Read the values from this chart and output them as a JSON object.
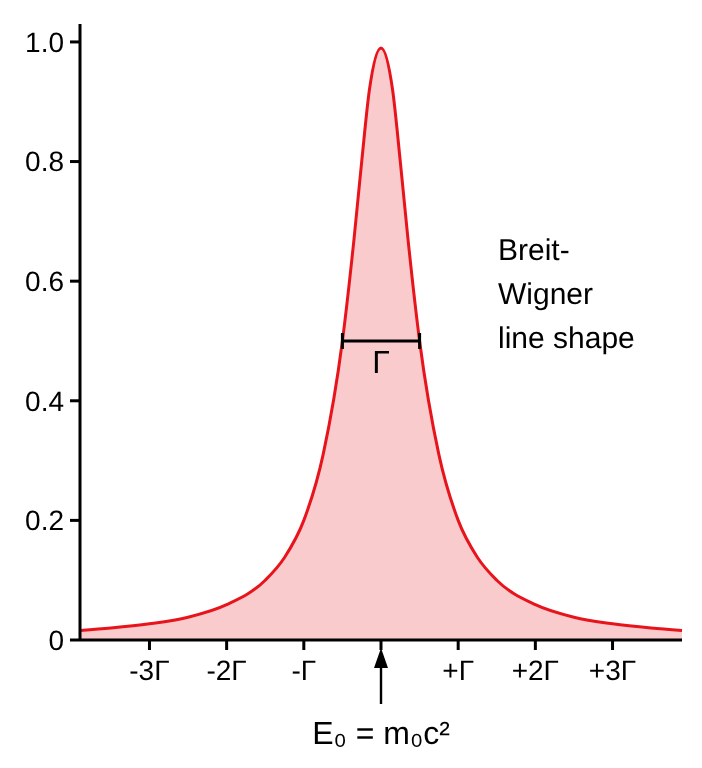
{
  "chart_data": {
    "type": "area",
    "x": [
      -3.9,
      -3.5,
      -3,
      -2.5,
      -2,
      -1.5,
      -1.25,
      -1,
      -0.75,
      -0.5,
      -0.35,
      -0.25,
      -0.15,
      0,
      0.15,
      0.25,
      0.35,
      0.5,
      0.75,
      1,
      1.25,
      1.5,
      2,
      2.5,
      3,
      3.5,
      3.9
    ],
    "series": [
      {
        "color": "#e8141c",
        "values": [
          0.016,
          0.02,
          0.027,
          0.038,
          0.059,
          0.1,
          0.138,
          0.2,
          0.31,
          0.5,
          0.67,
          0.8,
          0.92,
          0.99,
          0.92,
          0.8,
          0.67,
          0.5,
          0.31,
          0.2,
          0.138,
          0.1,
          0.059,
          0.038,
          0.027,
          0.02,
          0.016
        ]
      }
    ],
    "xlim": [
      -3.9,
      3.9
    ],
    "xticks": [
      {
        "value": -3,
        "label": "-3Γ"
      },
      {
        "value": -2,
        "label": "-2Γ"
      },
      {
        "value": -1,
        "label": "-Γ"
      },
      {
        "value": 0,
        "label": null
      },
      {
        "value": 1,
        "label": "+Γ"
      },
      {
        "value": 2,
        "label": "+2Γ"
      },
      {
        "value": 3,
        "label": "+3Γ"
      }
    ],
    "ylim": [
      0,
      1.03
    ],
    "yticks": [
      0,
      0.2,
      0.4,
      0.6,
      0.8,
      {
        "value": 1,
        "label": "1.0"
      }
    ],
    "grid": false,
    "annotations": [
      "Breit-Wigner line shape",
      {
        "text": "Γ",
        "x": 0,
        "y": 0.5
      },
      {
        "text": "E₀ = m₀c²",
        "x": 0,
        "y": 0
      }
    ]
  }
}
